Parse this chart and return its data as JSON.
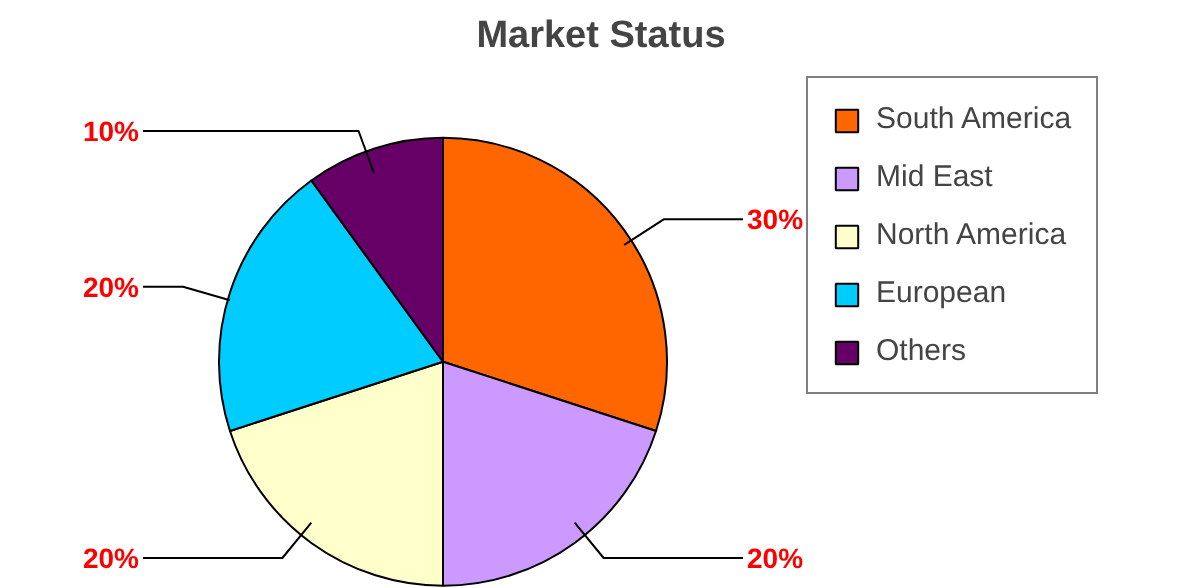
{
  "chart_data": {
    "type": "pie",
    "title": "Market Status",
    "categories": [
      "South America",
      "Mid East",
      "North America",
      "European",
      "Others"
    ],
    "values": [
      30,
      20,
      20,
      20,
      10
    ],
    "value_labels": [
      "30%",
      "20%",
      "20%",
      "20%",
      "10%"
    ],
    "colors": [
      "#ff6600",
      "#cc99ff",
      "#ffffcc",
      "#00ccff",
      "#660066"
    ],
    "legend": "right"
  }
}
